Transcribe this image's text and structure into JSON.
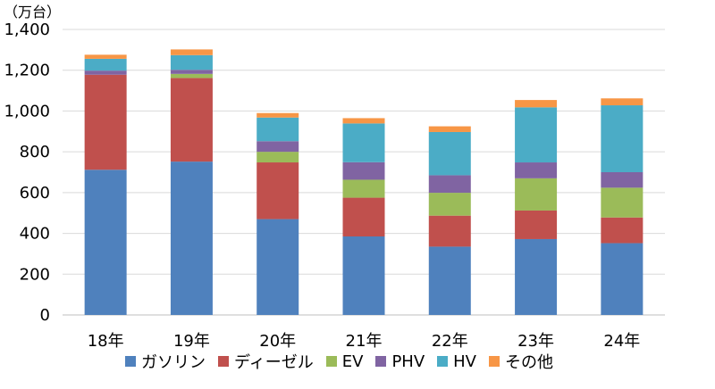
{
  "chart_data": {
    "type": "bar",
    "stacked": true,
    "unit_label": "（万台）",
    "categories": [
      "18年",
      "19年",
      "20年",
      "21年",
      "22年",
      "23年",
      "24年"
    ],
    "ylim": [
      0,
      1400
    ],
    "y_ticks": [
      "0",
      "200",
      "400",
      "600",
      "800",
      "1,000",
      "1,200",
      "1,400"
    ],
    "grid": true,
    "legend_position": "bottom",
    "series": [
      {
        "name": "ガソリン",
        "color": "#4F81BD",
        "values": [
          712,
          752,
          470,
          385,
          335,
          372,
          352
        ]
      },
      {
        "name": "ディーゼル",
        "color": "#C0504D",
        "values": [
          466,
          410,
          278,
          190,
          152,
          140,
          126
        ]
      },
      {
        "name": "EV",
        "color": "#9BBB59",
        "values": [
          0,
          20,
          52,
          88,
          112,
          158,
          146
        ]
      },
      {
        "name": "PHV",
        "color": "#8064A2",
        "values": [
          20,
          20,
          52,
          86,
          86,
          78,
          76
        ]
      },
      {
        "name": "HV",
        "color": "#4BACC6",
        "values": [
          58,
          72,
          116,
          190,
          212,
          270,
          328
        ]
      },
      {
        "name": "その他",
        "color": "#F79646",
        "values": [
          20,
          28,
          22,
          26,
          28,
          36,
          34
        ]
      }
    ]
  }
}
